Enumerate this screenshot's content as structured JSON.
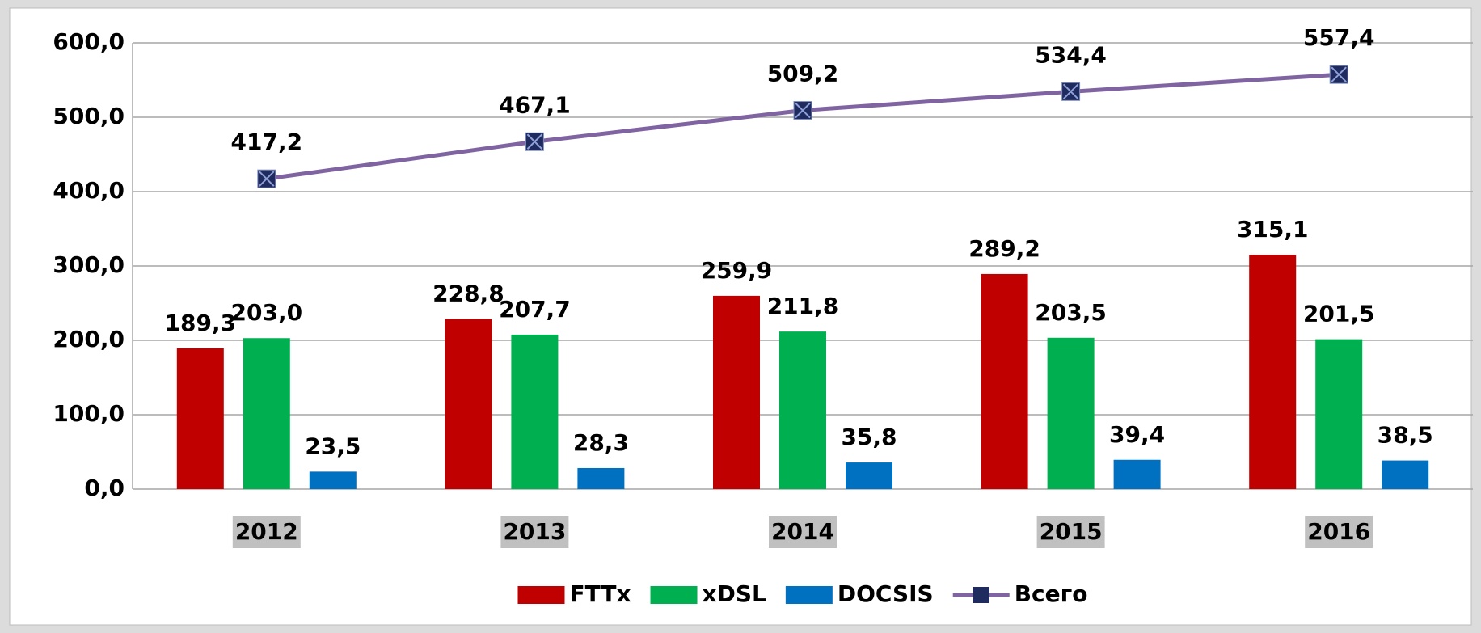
{
  "chart_data": {
    "type": "bar-line",
    "categories": [
      "2012",
      "2013",
      "2014",
      "2015",
      "2016"
    ],
    "series": [
      {
        "name": "FTTx",
        "type": "bar",
        "color": "#c00000",
        "values": [
          189.3,
          228.8,
          259.9,
          289.2,
          315.1
        ],
        "value_labels": [
          "189,3",
          "228,8",
          "259,9",
          "289,2",
          "315,1"
        ]
      },
      {
        "name": "xDSL",
        "type": "bar",
        "color": "#00b050",
        "values": [
          203.0,
          207.7,
          211.8,
          203.5,
          201.5
        ],
        "value_labels": [
          "203,0",
          "207,7",
          "211,8",
          "203,5",
          "201,5"
        ]
      },
      {
        "name": "DOCSIS",
        "type": "bar",
        "color": "#0070c0",
        "values": [
          23.5,
          28.3,
          35.8,
          39.4,
          38.5
        ],
        "value_labels": [
          "23,5",
          "28,3",
          "35,8",
          "39,4",
          "38,5"
        ]
      },
      {
        "name": "Всего",
        "type": "line",
        "color": "#8064a2",
        "marker_color": "#1f2a5e",
        "values": [
          417.2,
          467.1,
          509.2,
          534.4,
          557.4
        ],
        "value_labels": [
          "417,2",
          "467,1",
          "509,2",
          "534,4",
          "557,4"
        ]
      }
    ],
    "ylim": [
      0,
      600
    ],
    "yticks": [
      {
        "value": 0,
        "label": "0,0"
      },
      {
        "value": 100,
        "label": "100,0"
      },
      {
        "value": 200,
        "label": "200,0"
      },
      {
        "value": 300,
        "label": "300,0"
      },
      {
        "value": 400,
        "label": "400,0"
      },
      {
        "value": 500,
        "label": "500,0"
      },
      {
        "value": 600,
        "label": "600,0"
      }
    ],
    "grid": true,
    "legend": "bottom"
  }
}
